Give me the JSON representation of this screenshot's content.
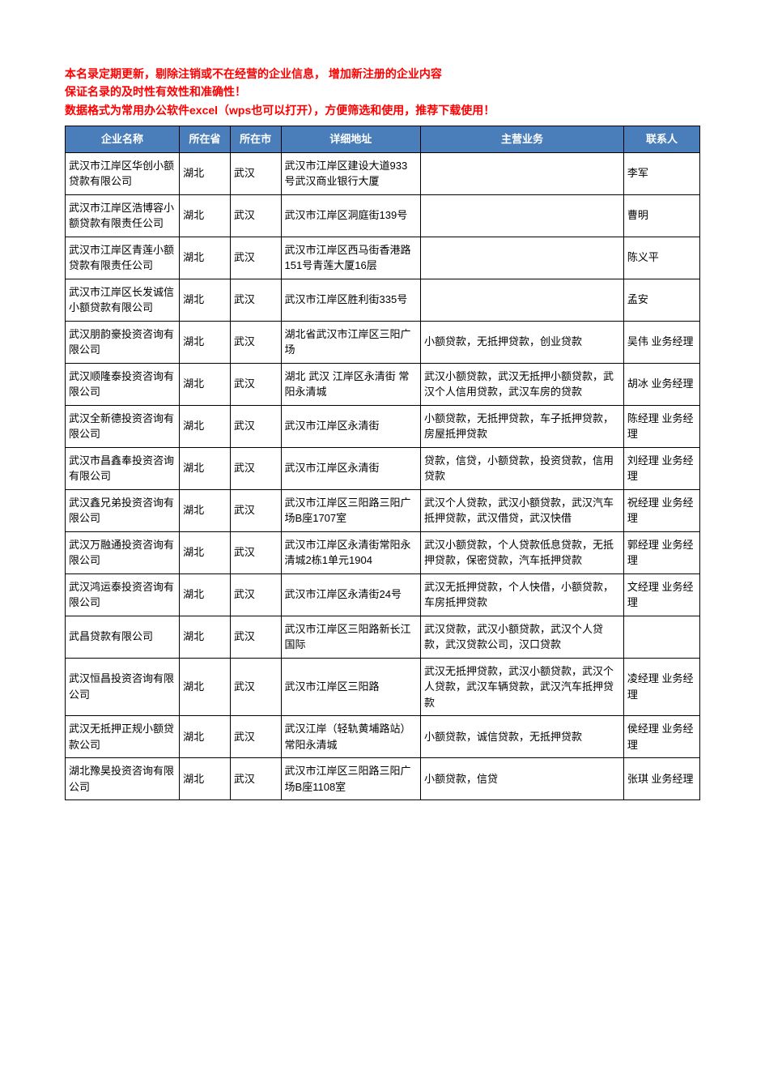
{
  "intro": {
    "line1": "本名录定期更新，剔除注销或不在经营的企业信息，  增加新注册的企业内容",
    "line2": "保证名录的及时性有效性和准确性！",
    "line3": "数据格式为常用办公软件excel（wps也可以打开），方便筛选和使用，推荐下载使用！"
  },
  "table": {
    "headers": {
      "name": "企业名称",
      "province": "所在省",
      "city": "所在市",
      "address": "详细地址",
      "business": "主营业务",
      "contact": "联系人"
    },
    "rows": [
      {
        "name": "武汉市江岸区华创小额贷款有限公司",
        "province": "湖北",
        "city": "武汉",
        "address": "武汉市江岸区建设大道933号武汉商业银行大厦",
        "business": "",
        "contact": "李军"
      },
      {
        "name": "武汉市江岸区浩博容小额贷款有限责任公司",
        "province": "湖北",
        "city": "武汉",
        "address": "武汉市江岸区洞庭街139号",
        "business": "",
        "contact": "曹明"
      },
      {
        "name": "武汉市江岸区青莲小额贷款有限责任公司",
        "province": "湖北",
        "city": "武汉",
        "address": "武汉市江岸区西马街香港路151号青莲大厦16层",
        "business": "",
        "contact": "陈义平"
      },
      {
        "name": "武汉市江岸区长发诚信小额贷款有限公司",
        "province": "湖北",
        "city": "武汉",
        "address": "武汉市江岸区胜利街335号",
        "business": "",
        "contact": "孟安"
      },
      {
        "name": "武汉朋韵豪投资咨询有限公司",
        "province": "湖北",
        "city": "武汉",
        "address": "湖北省武汉市江岸区三阳广场",
        "business": "小额贷款，无抵押贷款，创业贷款",
        "contact": "吴伟 业务经理"
      },
      {
        "name": "武汉顺隆泰投资咨询有限公司",
        "province": "湖北",
        "city": "武汉",
        "address": "湖北   武汉  江岸区永清街   常阳永清城",
        "business": "武汉小额贷款，武汉无抵押小额贷款，武汉个人信用贷款，武汉车房的贷款",
        "contact": "胡冰 业务经理"
      },
      {
        "name": "武汉全新德投资咨询有限公司",
        "province": "湖北",
        "city": "武汉",
        "address": "武汉市江岸区永清街",
        "business": "小额贷款，无抵押贷款，车子抵押贷款，房屋抵押贷款",
        "contact": "陈经理 业务经理"
      },
      {
        "name": "武汉市昌鑫奉投资咨询有限公司",
        "province": "湖北",
        "city": "武汉",
        "address": "武汉市江岸区永清街",
        "business": "贷款，信贷，小额贷款，投资贷款，信用贷款",
        "contact": "刘经理 业务经理"
      },
      {
        "name": "武汉鑫兄弟投资咨询有限公司",
        "province": "湖北",
        "city": "武汉",
        "address": "武汉市江岸区三阳路三阳广场B座1707室",
        "business": "武汉个人贷款，武汉小额贷款，武汉汽车抵押贷款，武汉借贷，武汉快借",
        "contact": "祝经理 业务经理"
      },
      {
        "name": "武汉万融通投资咨询有限公司",
        "province": "湖北",
        "city": "武汉",
        "address": "武汉市江岸区永清街常阳永清城2栋1单元1904",
        "business": "武汉小额贷款，个人贷款低息贷款，无抵押贷款，保密贷款，汽车抵押贷款",
        "contact": "郭经理 业务经理"
      },
      {
        "name": "武汉鸿运泰投资咨询有限公司",
        "province": "湖北",
        "city": "武汉",
        "address": "武汉市江岸区永清街24号",
        "business": "武汉无抵押贷款，个人快借，小额贷款，车房抵押贷款",
        "contact": "文经理 业务经理"
      },
      {
        "name": "武昌贷款有限公司",
        "province": "湖北",
        "city": "武汉",
        "address": "武汉市江岸区三阳路新长江国际",
        "business": "武汉贷款，武汉小额贷款，武汉个人贷款，武汉贷款公司，汉口贷款",
        "contact": ""
      },
      {
        "name": "武汉恒昌投资咨询有限公司",
        "province": "湖北",
        "city": "武汉",
        "address": "武汉市江岸区三阳路",
        "business": "武汉无抵押贷款，武汉小额贷款，武汉个人贷款，武汉车辆贷款，武汉汽车抵押贷款",
        "contact": "凌经理 业务经理"
      },
      {
        "name": "武汉无抵押正规小额贷款公司",
        "province": "湖北",
        "city": "武汉",
        "address": "武汉江岸（轻轨黄埔路站）常阳永清城",
        "business": "小额贷款，诚信贷款，无抵押贷款",
        "contact": "侯经理 业务经理"
      },
      {
        "name": "湖北豫昊投资咨询有限公司",
        "province": "湖北",
        "city": "武汉",
        "address": "武汉市江岸区三阳路三阳广场B座1108室",
        "business": "小额贷款，信贷",
        "contact": "张琪 业务经理"
      }
    ]
  }
}
